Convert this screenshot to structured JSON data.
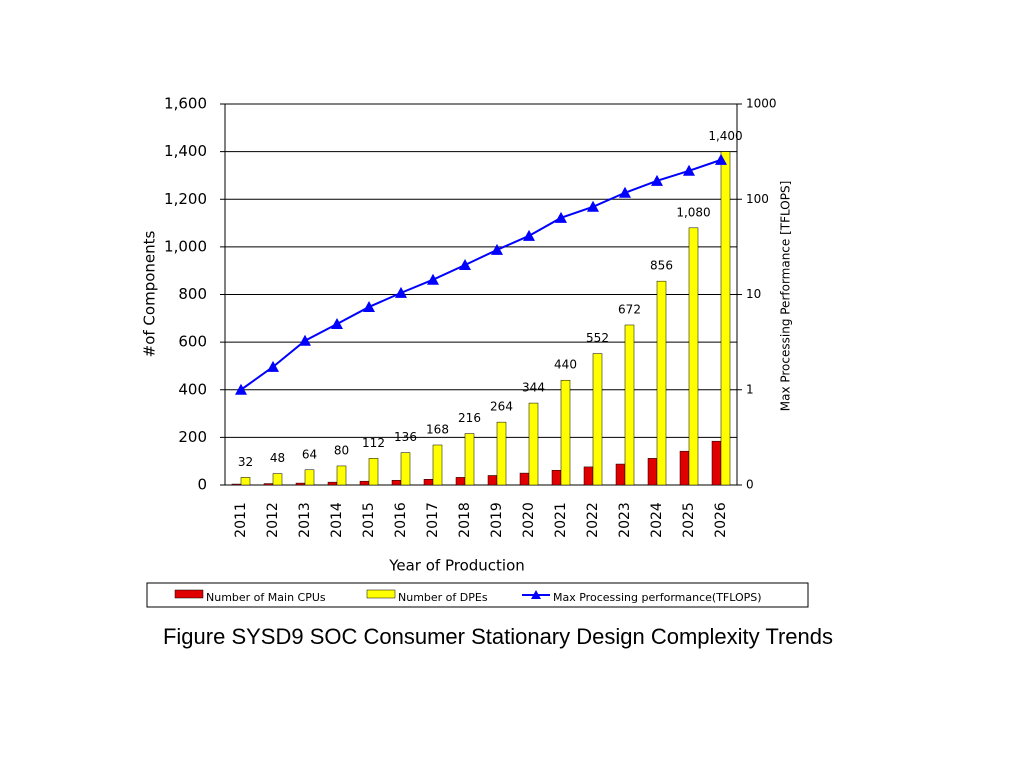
{
  "chart_data": {
    "type": "bar_line",
    "title": "Figure SYSD9  SOC Consumer Stationary Design Complexity Trends",
    "x_label": "Year of Production",
    "y_label": "#of Components",
    "y2_label": "Max Processing Performance [TFLOPS]",
    "categories": [
      "2011",
      "2012",
      "2013",
      "2014",
      "2015",
      "2016",
      "2017",
      "2018",
      "2019",
      "2020",
      "2021",
      "2022",
      "2023",
      "2024",
      "2025",
      "2026"
    ],
    "series": [
      {
        "name": "Number of Main CPUs",
        "kind": "bar",
        "color": "#e00000",
        "values": [
          4,
          6,
          8,
          12,
          16,
          20,
          24,
          32,
          40,
          50,
          62,
          76,
          88,
          112,
          142,
          184
        ]
      },
      {
        "name": "Number of DPEs",
        "kind": "bar",
        "color": "#ffff00",
        "values": [
          32,
          48,
          64,
          80,
          112,
          136,
          168,
          216,
          264,
          344,
          440,
          552,
          672,
          856,
          1080,
          1400
        ],
        "value_labels": [
          "32",
          "48",
          "64",
          "80",
          "112",
          "136",
          "168",
          "216",
          "264",
          "344",
          "440",
          "552",
          "672",
          "856",
          "1,080",
          "1,400"
        ]
      },
      {
        "name": "Max Processing performance(TFLOPS)",
        "kind": "line",
        "axis": "y2",
        "color": "#0000ff",
        "values": [
          1,
          1.74,
          3.27,
          4.9,
          7.4,
          10.4,
          14.3,
          20.4,
          29.4,
          41.3,
          63.8,
          83.3,
          117,
          156,
          199,
          259
        ]
      }
    ],
    "ylim": [
      0,
      1600
    ],
    "yticks": [
      0,
      200,
      400,
      600,
      800,
      {
        "value": 1000,
        "label": "1,000"
      },
      {
        "value": 1200,
        "label": "1,200"
      },
      {
        "value": 1400,
        "label": "1,400"
      },
      {
        "value": 1600,
        "label": "1,600"
      }
    ],
    "y2lim": [
      0.1,
      1000
    ],
    "y2_log": true,
    "y2ticks": [
      {
        "value": 0.1,
        "label": "0"
      },
      1,
      10,
      100,
      1000
    ],
    "grid": true
  }
}
